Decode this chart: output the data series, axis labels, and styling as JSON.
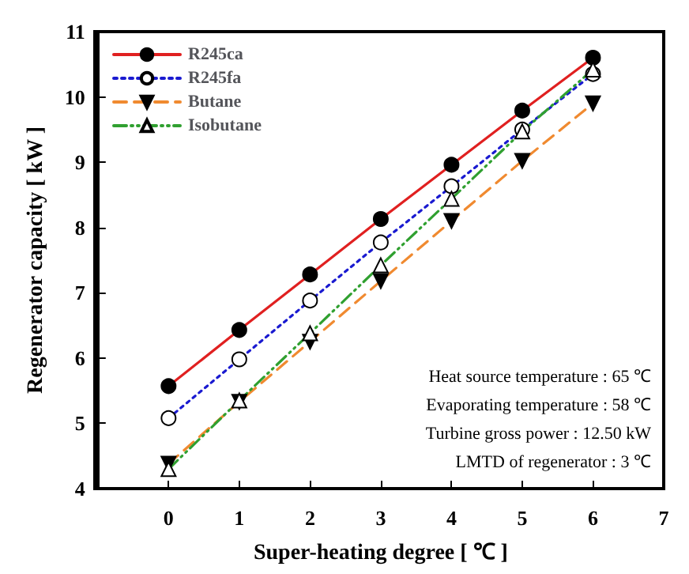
{
  "chart_data": {
    "type": "line",
    "xlabel": "Super-heating degree [ ℃ ]",
    "ylabel": "Regenerator capacity [ kW ]",
    "x": [
      0,
      1,
      2,
      3,
      4,
      5,
      6
    ],
    "series": [
      {
        "name": "R245ca",
        "color": "#e02020",
        "marker": "circle",
        "line_style": "solid",
        "values": [
          5.57,
          6.43,
          7.28,
          8.13,
          8.96,
          9.79,
          10.6
        ]
      },
      {
        "name": "R245fa",
        "color": "#1a1ad0",
        "marker": "circle",
        "line_style": "dotted",
        "values": [
          5.08,
          5.98,
          6.88,
          7.77,
          8.63,
          9.5,
          10.35
        ]
      },
      {
        "name": "Butane",
        "color": "#f08a30",
        "marker": "triangle-down",
        "line_style": "dashed",
        "values": [
          4.38,
          5.33,
          6.25,
          7.18,
          8.1,
          9.02,
          9.9
        ]
      },
      {
        "name": "Isobutane",
        "color": "#30a030",
        "marker": "triangle",
        "line_style": "dashdot",
        "values": [
          4.3,
          5.35,
          6.38,
          7.42,
          8.44,
          9.47,
          10.42
        ]
      }
    ],
    "xlim": [
      -1,
      7
    ],
    "xticks": [
      0,
      1,
      2,
      3,
      4,
      5,
      6,
      7
    ],
    "ylim": [
      4,
      11
    ],
    "yticks": [
      4,
      5,
      6,
      7,
      8,
      9,
      10,
      11
    ],
    "grid": false,
    "legend": "top left",
    "annotations": [
      "Heat source temperature : 65 ℃",
      "Evaporating temperature : 58 ℃",
      "Turbine gross power : 12.50 kW",
      "LMTD of regenerator : 3 ℃"
    ]
  }
}
